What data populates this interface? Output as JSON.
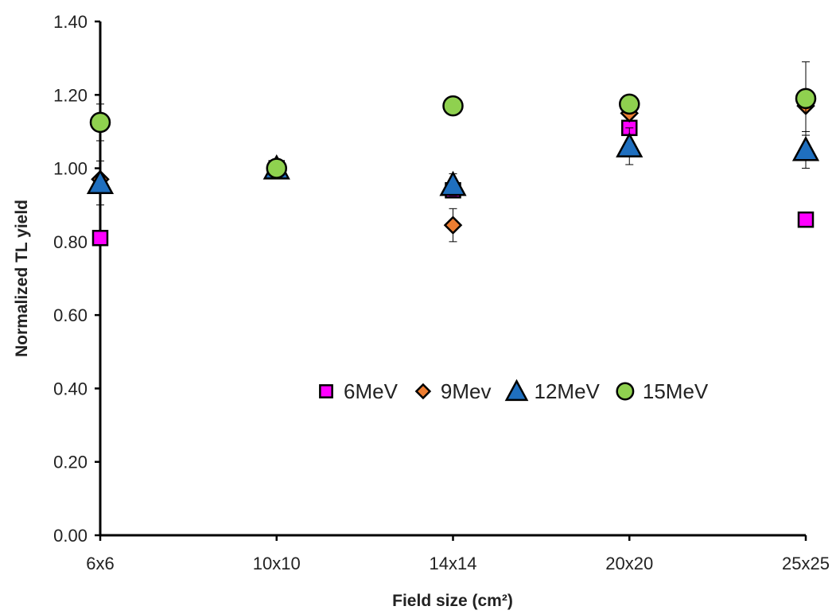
{
  "chart_data": {
    "type": "scatter",
    "xlabel": "Field size (cm²)",
    "ylabel": "Normalized TL yield",
    "categories": [
      "6x6",
      "10x10",
      "14x14",
      "20x20",
      "25x25"
    ],
    "ylim": [
      0,
      1.4
    ],
    "yticks": [
      "0.00",
      "0.20",
      "0.40",
      "0.60",
      "0.80",
      "1.00",
      "1.20",
      "1.40"
    ],
    "grid": false,
    "legend_position": "center-right",
    "series": [
      {
        "name": "6MeV",
        "marker": "square",
        "color": "#FF00FF",
        "values": [
          0.81,
          1.0,
          0.94,
          1.11,
          0.86
        ],
        "errors": [
          0.0,
          0.0,
          0.0,
          0.0,
          0.0
        ]
      },
      {
        "name": "9Mev",
        "marker": "diamond",
        "color": "#ED7D31",
        "values": [
          0.97,
          1.0,
          0.845,
          1.15,
          1.17
        ],
        "errors": [
          0.0,
          0.0,
          0.045,
          0.0,
          0.0
        ]
      },
      {
        "name": "12MeV",
        "marker": "triangle",
        "color": "#1F6FBF",
        "values": [
          0.96,
          1.0,
          0.955,
          1.06,
          1.05
        ],
        "errors": [
          0.06,
          0.0,
          0.03,
          0.05,
          0.05
        ]
      },
      {
        "name": "15MeV",
        "marker": "circle",
        "color": "#8FD14F",
        "values": [
          1.125,
          1.0,
          1.17,
          1.175,
          1.19
        ],
        "errors": [
          0.05,
          0.0,
          0.0,
          0.0,
          0.1
        ]
      }
    ]
  }
}
